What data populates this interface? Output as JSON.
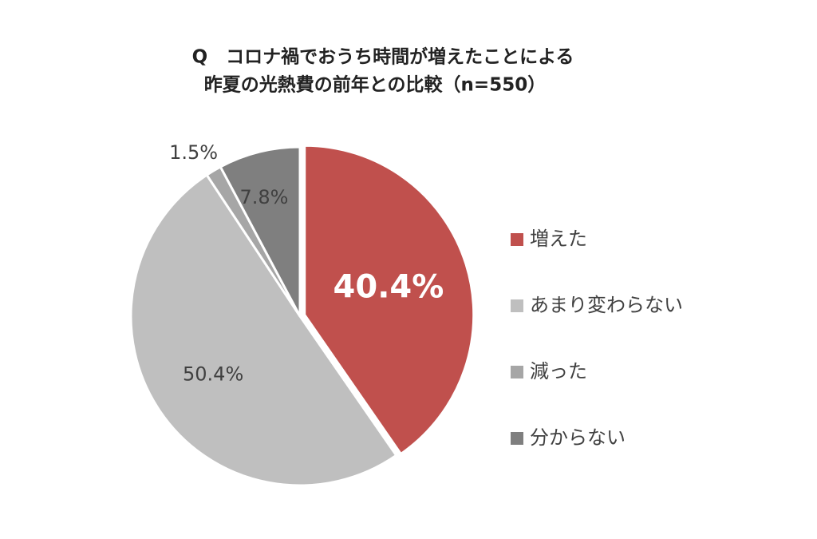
{
  "chart_data": {
    "type": "pie",
    "title": "Q　コロナ禍でおうち時間が増えたことによる",
    "subtitle": "昨夏の光熱費の前年との比較（n=550）",
    "categories": [
      "増えた",
      "あまり変わらない",
      "減った",
      "分からない"
    ],
    "values": [
      40.4,
      50.4,
      1.5,
      7.8
    ],
    "value_labels": [
      "40.4%",
      "50.4%",
      "1.5%",
      "7.8%"
    ],
    "colors": [
      "#c0504d",
      "#bfbfbf",
      "#a6a6a6",
      "#7f7f7f"
    ],
    "legend": "right"
  }
}
